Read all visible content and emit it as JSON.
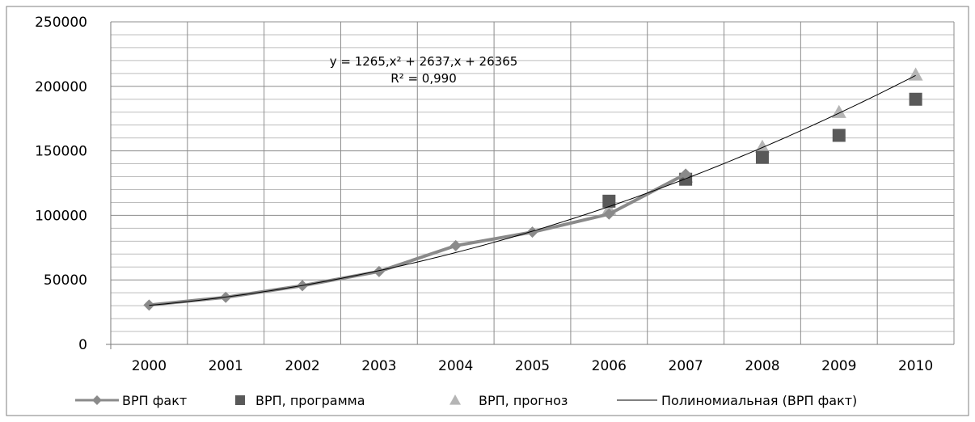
{
  "chart_data": {
    "type": "line",
    "title": "",
    "xlabel": "",
    "ylabel": "",
    "x": [
      "2000",
      "2001",
      "2002",
      "2003",
      "2004",
      "2005",
      "2006",
      "2007",
      "2008",
      "2009",
      "2010"
    ],
    "ylim": [
      0,
      250000
    ],
    "yticks": [
      0,
      50000,
      100000,
      150000,
      200000,
      250000
    ],
    "grid": true,
    "legend_position": "bottom",
    "series": [
      {
        "name": "ВРП факт",
        "style": "line-diamond",
        "color": "#8a8a8a",
        "values": [
          30500,
          36500,
          45500,
          56500,
          76500,
          87000,
          101000,
          132000,
          null,
          null,
          null
        ]
      },
      {
        "name": "ВРП, программа",
        "style": "square",
        "color": "#595959",
        "values": [
          null,
          null,
          null,
          null,
          null,
          null,
          111000,
          128000,
          145000,
          162000,
          190000
        ]
      },
      {
        "name": "ВРП, прогноз",
        "style": "triangle",
        "color": "#b5b5b5",
        "values": [
          null,
          null,
          null,
          null,
          null,
          null,
          105000,
          130000,
          153000,
          180000,
          209000
        ]
      },
      {
        "name": "Полиномиальная (ВРП факт)",
        "style": "trendline",
        "color": "#000000",
        "coefficients": [
          1265,
          2637,
          26365
        ]
      }
    ],
    "annotations": {
      "equation": "y = 1265,x² + 2637,x + 26365",
      "r_squared": "R² = 0,990"
    }
  }
}
